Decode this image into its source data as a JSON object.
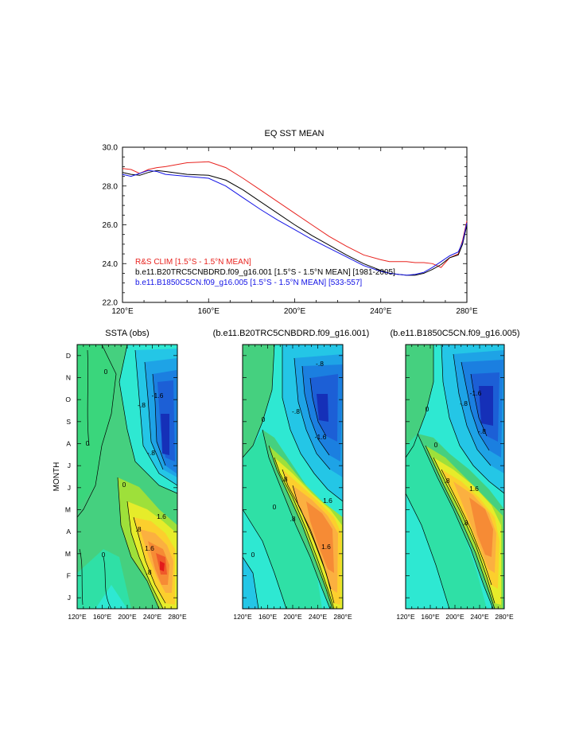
{
  "chart_data": [
    {
      "type": "line",
      "title": "EQ SST MEAN",
      "xlabel": "",
      "ylabel": "",
      "xlim": [
        120,
        280
      ],
      "ylim": [
        22.0,
        30.0
      ],
      "xticks": [
        "120°E",
        "160°E",
        "200°E",
        "240°E",
        "280°E"
      ],
      "yticks": [
        "22.0",
        "24.0",
        "26.0",
        "28.0",
        "30.0"
      ],
      "x": [
        120,
        124,
        128,
        132,
        136,
        140,
        150,
        160,
        168,
        176,
        184,
        192,
        200,
        208,
        216,
        224,
        232,
        240,
        244,
        248,
        252,
        256,
        260,
        264,
        268,
        272,
        276,
        278,
        280
      ],
      "series": [
        {
          "name": "R&S CLIM [1.5°S - 1.5°N MEAN]",
          "color": "#e8231f",
          "values": [
            28.9,
            28.85,
            28.65,
            28.85,
            28.95,
            29.0,
            29.2,
            29.25,
            28.95,
            28.4,
            27.8,
            27.2,
            26.6,
            26.0,
            25.4,
            24.9,
            24.45,
            24.2,
            24.1,
            24.1,
            24.1,
            24.05,
            24.05,
            24.0,
            23.8,
            24.3,
            24.5,
            25.2,
            26.2
          ]
        },
        {
          "name": "b.e11.B20TRC5CNBDRD.f09_g16.001 [1.5°S - 1.5°N MEAN] [1981-2005]",
          "color": "#000000",
          "values": [
            28.7,
            28.6,
            28.55,
            28.7,
            28.8,
            28.75,
            28.6,
            28.55,
            28.3,
            27.8,
            27.2,
            26.6,
            26.0,
            25.45,
            24.95,
            24.45,
            24.0,
            23.65,
            23.5,
            23.45,
            23.4,
            23.4,
            23.5,
            23.7,
            23.95,
            24.3,
            24.45,
            25.0,
            26.0
          ]
        },
        {
          "name": "b.e11.B1850C5CN.f09_g16.005 [1.5°S - 1.5°N MEAN] [533-557]",
          "color": "#1414e6",
          "values": [
            28.6,
            28.5,
            28.65,
            28.8,
            28.75,
            28.6,
            28.5,
            28.4,
            28.0,
            27.4,
            26.8,
            26.25,
            25.75,
            25.25,
            24.8,
            24.35,
            23.9,
            23.6,
            23.5,
            23.45,
            23.4,
            23.45,
            23.55,
            23.8,
            24.1,
            24.4,
            24.6,
            25.1,
            26.1
          ]
        }
      ]
    },
    {
      "type": "contour",
      "title": "SSTA (obs)",
      "ylabel": "MONTH",
      "xticks": [
        "120°E",
        "160°E",
        "200°E",
        "240°E",
        "280°E"
      ],
      "yticks": [
        "J",
        "F",
        "M",
        "A",
        "M",
        "J",
        "J",
        "A",
        "S",
        "O",
        "N",
        "D"
      ],
      "contour_labels": [
        "0",
        "0",
        "0",
        "0",
        ".8",
        ".8",
        "1.6",
        "1.6",
        "-.8",
        "-.8",
        "-1.6"
      ]
    },
    {
      "type": "contour",
      "title": "(b.e11.B20TRC5CNBDRD.f09_g16.001)",
      "xticks": [
        "120°E",
        "160°E",
        "200°E",
        "240°E",
        "280°E"
      ],
      "contour_labels": [
        "0",
        "0",
        "0",
        ".8",
        ".8",
        "1.6",
        "1.6",
        "-.8",
        "-.8",
        "-1.6"
      ]
    },
    {
      "type": "contour",
      "title": "(b.e11.B1850C5CN.f09_g16.005)",
      "xticks": [
        "120°E",
        "160°E",
        "200°E",
        "240°E",
        "280°E"
      ],
      "contour_labels": [
        "0",
        "0",
        ".8",
        ".8",
        "1.6",
        "-.8",
        "-.8",
        "-1.6"
      ]
    }
  ]
}
